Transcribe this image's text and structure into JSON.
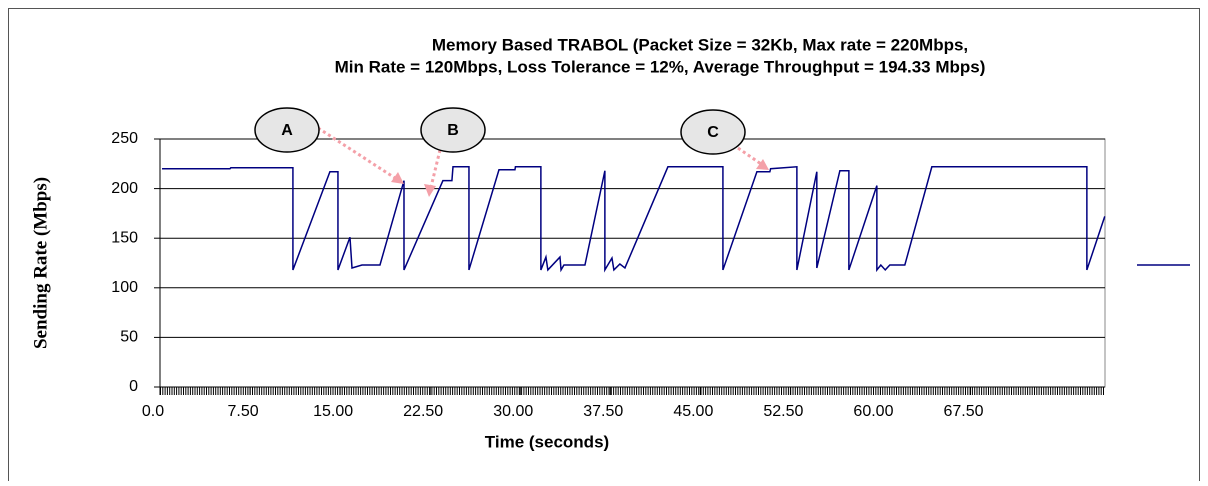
{
  "chart_data": {
    "type": "line",
    "title": "Memory Based TRABOL (Packet Size = 32Kb, Max rate = 220Mbps,",
    "subtitle": "Min Rate = 120Mbps, Loss Tolerance = 12%, Average Throughput = 194.33 Mbps)",
    "x_label": "Time (seconds)",
    "y_label": "Sending Rate (Mbps)",
    "annotations": [
      "A",
      "B",
      "C"
    ],
    "xlim": [
      0,
      78.7
    ],
    "xticks": [
      {
        "value": 0,
        "label": "0.0"
      },
      {
        "value": 7.5,
        "label": "7.50"
      },
      {
        "value": 15,
        "label": "15.00"
      },
      {
        "value": 22.5,
        "label": "22.50"
      },
      {
        "value": 30,
        "label": "30.00"
      },
      {
        "value": 37.5,
        "label": "37.50"
      },
      {
        "value": 45,
        "label": "45.00"
      },
      {
        "value": 52.5,
        "label": "52.50"
      },
      {
        "value": 60,
        "label": "60.00"
      },
      {
        "value": 67.5,
        "label": "67.50"
      }
    ],
    "ylim": [
      0,
      250
    ],
    "yticks": [
      0,
      50,
      100,
      150,
      200,
      250
    ],
    "grid": true,
    "legend": "right",
    "series": [
      {
        "color": "#000080",
        "x": [
          0.17,
          5.83,
          5.9,
          11.07,
          11.07,
          14.15,
          14.82,
          14.82,
          15.82,
          15.99,
          16.82,
          18.32,
          20.32,
          20.32,
          23.56,
          24.31,
          24.4,
          25.73,
          25.73,
          28.23,
          29.56,
          29.6,
          31.72,
          31.72,
          32.14,
          32.3,
          33.31,
          33.4,
          33.64,
          35.39,
          37.05,
          37.05,
          37.64,
          37.8,
          38.3,
          38.72,
          42.3,
          46.88,
          46.88,
          49.71,
          50.79,
          50.85,
          53.04,
          53.04,
          54.7,
          54.7,
          56.62,
          57.37,
          57.37,
          59.7,
          59.7,
          60.03,
          60.4,
          60.78,
          62.03,
          64.28,
          77.19,
          77.19,
          78.68
        ],
        "values": [
          220,
          220,
          221,
          221,
          118,
          217,
          217,
          118,
          151,
          120,
          123,
          123,
          208,
          118,
          208,
          208,
          222,
          222,
          118,
          219,
          219,
          222,
          222,
          118,
          131,
          118,
          131,
          118,
          123,
          123,
          218,
          118,
          130,
          118,
          124,
          120,
          222,
          222,
          118,
          217,
          217,
          220,
          222,
          118,
          217,
          120,
          218,
          218,
          118,
          203,
          118,
          123,
          118,
          123,
          123,
          222,
          222,
          118,
          172
        ]
      }
    ]
  }
}
